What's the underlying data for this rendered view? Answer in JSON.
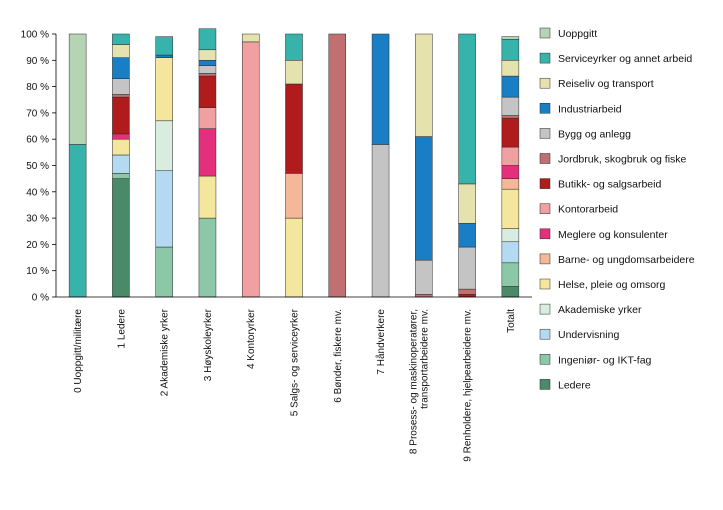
{
  "chart_data": {
    "type": "bar",
    "stacked": true,
    "title": "",
    "xlabel": "",
    "ylabel": "",
    "ylim": [
      0,
      100
    ],
    "yticks": [
      "0 %",
      "10 %",
      "20 %",
      "30 %",
      "40 %",
      "50 %",
      "60 %",
      "70 %",
      "80 %",
      "90 %",
      "100 %"
    ],
    "legend_position": "right",
    "categories": [
      [
        "0 Uoppgitt/militære"
      ],
      [
        "1 Ledere"
      ],
      [
        "2 Akademiske yrker"
      ],
      [
        "3 Høyskoleyrker"
      ],
      [
        "4 Kontoryrker"
      ],
      [
        "5 Salgs- og serviceyrker"
      ],
      [
        "6 Bønder, fiskere mv."
      ],
      [
        "7 Håndverkere"
      ],
      [
        "8 Prosess- og maskinoperatører,",
        "transportarbeidere mv."
      ],
      [
        "9 Renholdere, hjelpearbeidere mv."
      ],
      [
        "Totalt"
      ]
    ],
    "series": [
      {
        "name": "Ledere",
        "color": "#4a8a68",
        "values": [
          0,
          45,
          0,
          0,
          0,
          0,
          0,
          0,
          0,
          0,
          4
        ]
      },
      {
        "name": "Ingeniør- og IKT-fag",
        "color": "#8cc8a8",
        "values": [
          0,
          2,
          19,
          30,
          0,
          0,
          0,
          0,
          0,
          0,
          9
        ]
      },
      {
        "name": "Undervisning",
        "color": "#b4daf2",
        "values": [
          0,
          7,
          29,
          0,
          0,
          0,
          0,
          0,
          0,
          0,
          8
        ]
      },
      {
        "name": "Akademiske yrker",
        "color": "#d8ece0",
        "values": [
          0,
          0,
          19,
          0,
          0,
          0,
          0,
          0,
          0,
          0,
          5
        ]
      },
      {
        "name": "Helse, pleie og omsorg",
        "color": "#f4e69c",
        "values": [
          0,
          6,
          24,
          16,
          0,
          30,
          0,
          0,
          0,
          0,
          15
        ]
      },
      {
        "name": "Barne- og ungdomsarbeidere",
        "color": "#f4b898",
        "values": [
          0,
          0,
          0,
          0,
          0,
          17,
          0,
          0,
          0,
          0,
          4
        ]
      },
      {
        "name": "Meglere og konsulenter",
        "color": "#e4307c",
        "values": [
          0,
          2,
          0,
          18,
          0,
          0,
          0,
          0,
          0,
          0,
          5
        ]
      },
      {
        "name": "Kontorarbeid",
        "color": "#f0a0a0",
        "values": [
          0,
          0,
          0,
          8,
          97,
          0,
          0,
          0,
          0,
          0,
          7
        ]
      },
      {
        "name": "Butikk- og salgsarbeid",
        "color": "#b01c1c",
        "values": [
          0,
          14,
          0,
          12,
          0,
          34,
          0,
          0,
          0,
          1,
          11
        ]
      },
      {
        "name": "Jordbruk, skogbruk og fiske",
        "color": "#c07070",
        "values": [
          0,
          1,
          0,
          1,
          0,
          0,
          100,
          0,
          1,
          2,
          1
        ]
      },
      {
        "name": "Bygg og anlegg",
        "color": "#c4c4c4",
        "values": [
          0,
          6,
          0,
          3,
          0,
          0,
          0,
          58,
          13,
          16,
          7
        ]
      },
      {
        "name": "Industriarbeid",
        "color": "#1a7ec4",
        "values": [
          0,
          8,
          1,
          2,
          0,
          0,
          0,
          42,
          47,
          9,
          8
        ]
      },
      {
        "name": "Reiseliv og transport",
        "color": "#e6e2ae",
        "values": [
          0,
          5,
          0,
          4,
          3,
          9,
          0,
          0,
          39,
          15,
          6
        ]
      },
      {
        "name": "Serviceyrker og annet arbeid",
        "color": "#36b4ac",
        "values": [
          58,
          4,
          7,
          8,
          0,
          10,
          0,
          0,
          0,
          57,
          8
        ]
      },
      {
        "name": "Uoppgitt",
        "color": "#b4d4b4",
        "values": [
          42,
          0,
          0,
          0,
          0,
          0,
          0,
          0,
          0,
          0,
          1
        ]
      }
    ]
  }
}
